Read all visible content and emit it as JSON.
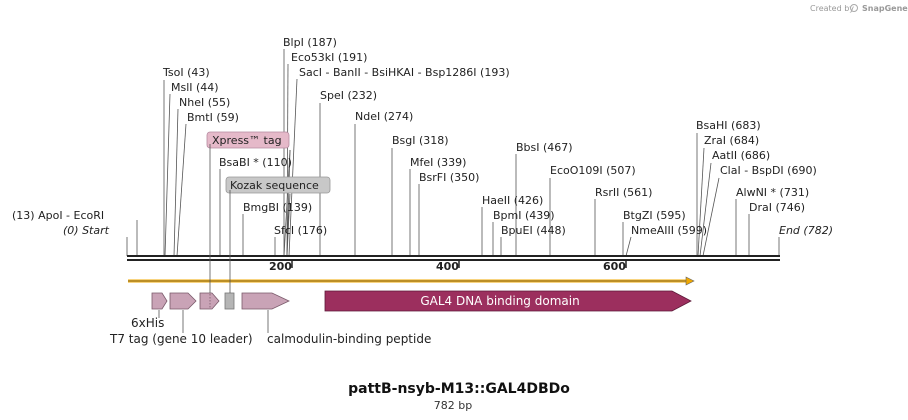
{
  "credit": {
    "created_by": "Created by",
    "brand": "SnapGene"
  },
  "title": "pattB-nsyb-M13::GAL4DBDo",
  "subtitle": "782 bp",
  "sequence_length": 782,
  "enzymes": [
    {
      "name": "ApoI",
      "pos": 13,
      "label": "(13)  ApoI  - EcoRI"
    },
    {
      "name": "Start",
      "pos": 0,
      "label": "(0)  Start"
    },
    {
      "name": "TsoI",
      "pos": 43,
      "label": "TsoI  (43)"
    },
    {
      "name": "MslI",
      "pos": 44,
      "label": "MslI  (44)"
    },
    {
      "name": "NheI",
      "pos": 55,
      "label": "NheI  (55)"
    },
    {
      "name": "BmtI",
      "pos": 59,
      "label": "BmtI  (59)"
    },
    {
      "name": "BsaBI",
      "pos": 110,
      "label": "BsaBI *  (110)"
    },
    {
      "name": "BlpI",
      "pos": 187,
      "label": "BlpI  (187)"
    },
    {
      "name": "Eco53kI",
      "pos": 191,
      "label": "Eco53kI  (191)"
    },
    {
      "name": "SacI",
      "pos": 193,
      "label": "SacI  - BanII  - BsiHKAI  - Bsp1286I  (193)"
    },
    {
      "name": "SpeI",
      "pos": 232,
      "label": "SpeI  (232)"
    },
    {
      "name": "BmgBI",
      "pos": 139,
      "label": "BmgBI  (139)"
    },
    {
      "name": "SfcI",
      "pos": 176,
      "label": "SfcI  (176)"
    },
    {
      "name": "NdeI",
      "pos": 274,
      "label": "NdeI  (274)"
    },
    {
      "name": "BsgI",
      "pos": 318,
      "label": "BsgI  (318)"
    },
    {
      "name": "MfeI",
      "pos": 339,
      "label": "MfeI  (339)"
    },
    {
      "name": "BsrFI",
      "pos": 350,
      "label": "BsrFI  (350)"
    },
    {
      "name": "BbsI",
      "pos": 467,
      "label": "BbsI  (467)"
    },
    {
      "name": "HaeII",
      "pos": 426,
      "label": "HaeII  (426)"
    },
    {
      "name": "BpmI",
      "pos": 439,
      "label": "BpmI  (439)"
    },
    {
      "name": "BpuEI",
      "pos": 448,
      "label": "BpuEI  (448)"
    },
    {
      "name": "EcoO109I",
      "pos": 507,
      "label": "EcoO109I  (507)"
    },
    {
      "name": "RsrII",
      "pos": 561,
      "label": "RsrII  (561)"
    },
    {
      "name": "BtgZI",
      "pos": 595,
      "label": "BtgZI  (595)"
    },
    {
      "name": "NmeAIII",
      "pos": 599,
      "label": "NmeAIII  (599)"
    },
    {
      "name": "BsaHI",
      "pos": 683,
      "label": "BsaHI  (683)"
    },
    {
      "name": "ZraI",
      "pos": 684,
      "label": "ZraI  (684)"
    },
    {
      "name": "AatII",
      "pos": 686,
      "label": "AatII  (686)"
    },
    {
      "name": "ClaI",
      "pos": 690,
      "label": "ClaI  - BspDI  (690)"
    },
    {
      "name": "AlwNI",
      "pos": 731,
      "label": "AlwNI *  (731)"
    },
    {
      "name": "DraI",
      "pos": 746,
      "label": "DraI  (746)"
    },
    {
      "name": "End",
      "pos": 782,
      "label": "End  (782)"
    }
  ],
  "ticks": [
    "200",
    "400",
    "600"
  ],
  "features": {
    "xpress_tag": "Xpress™ tag",
    "kozak": "Kozak sequence",
    "his": "6xHis",
    "t7": "T7 tag (gene 10 leader)",
    "calmodulin": "calmodulin-binding peptide",
    "gal4": "GAL4 DNA binding domain"
  },
  "colors": {
    "feature_light": "#c9a3b6",
    "gal4": "#9c2f5e",
    "orf": "#f0a800",
    "grey_box": "#b5b5b5",
    "xpress_fill": "#e5b9c9",
    "kozak_fill": "#c8c8c8"
  }
}
